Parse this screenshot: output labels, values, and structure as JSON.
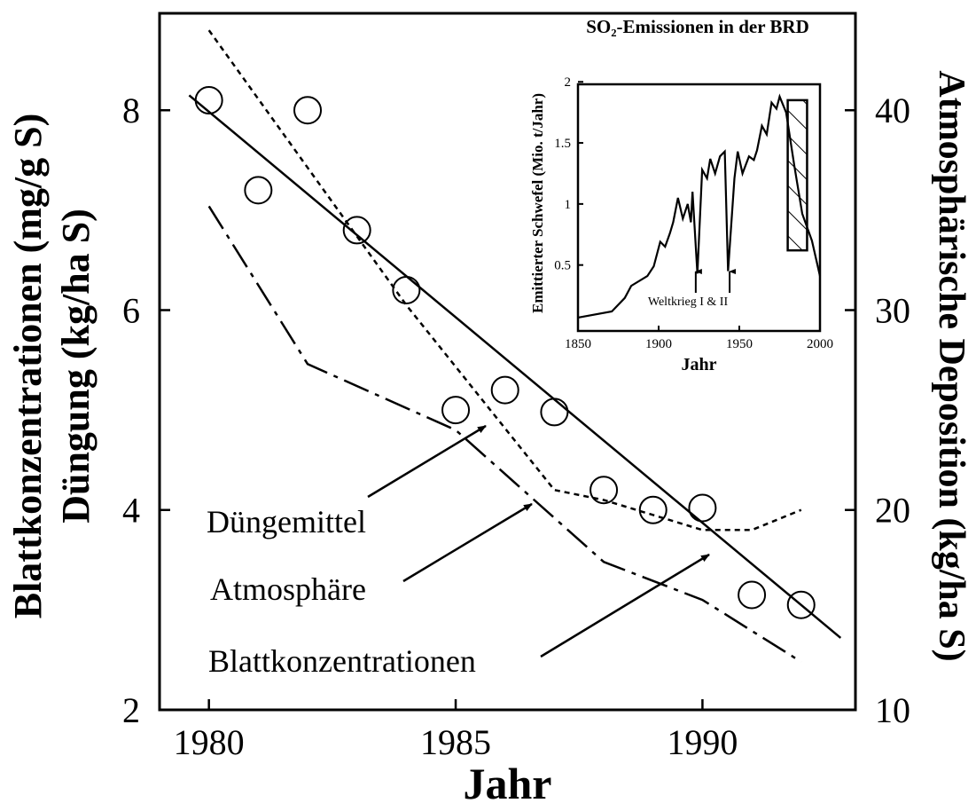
{
  "chart_data": [
    {
      "type": "line",
      "xlabel": "Jahr",
      "ylabel": [
        "Blattkonzentrationen (mg/g S)",
        "Düngung (kg/ha S)"
      ],
      "y2label": "Atmosphärische Deposition (kg/ha S)",
      "xlim": [
        1979,
        1993.1
      ],
      "xticks": [
        1980,
        1985,
        1990
      ],
      "ylim": [
        2,
        8.97
      ],
      "yticks": [
        2,
        4,
        6,
        8
      ],
      "y2lim": [
        10,
        44.85
      ],
      "y2ticks": [
        10,
        20,
        30,
        40
      ],
      "series": [
        {
          "style": "markers",
          "color": "#000000",
          "axis": "y",
          "x": [
            1980,
            1981,
            1982,
            1983,
            1984,
            1985,
            1986,
            1987,
            1988,
            1989,
            1990,
            1991,
            1992
          ],
          "values": [
            8.1,
            7.2,
            8.0,
            6.8,
            6.2,
            5.0,
            5.2,
            4.98,
            4.2,
            4.0,
            4.02,
            3.15,
            3.05
          ]
        },
        {
          "style": "solid",
          "color": "#000000",
          "axis": "y",
          "x": [
            1979.6,
            1992.8
          ],
          "values": [
            8.15,
            2.72
          ]
        },
        {
          "style": "dotted",
          "color": "#000000",
          "axis": "y",
          "x": [
            1980,
            1984,
            1987,
            1988,
            1990,
            1991,
            1992
          ],
          "values": [
            8.8,
            6.05,
            4.2,
            4.1,
            3.8,
            3.8,
            4.0
          ]
        },
        {
          "style": "dashdot",
          "color": "#000000",
          "axis": "y2",
          "x": [
            1980,
            1982,
            1985,
            1988,
            1990,
            1992
          ],
          "values": [
            35.2,
            27.3,
            24.0,
            17.4,
            15.5,
            12.4
          ]
        }
      ],
      "annotations": [
        {
          "text": "Düngemittel"
        },
        {
          "text": "Atmosphäre"
        },
        {
          "text": "Blattkonzentrationen"
        }
      ]
    },
    {
      "type": "line",
      "title": "SO₂-Emissionen in der BRD",
      "xlabel": "Jahr",
      "ylabel": "Emittierter Schwefel (Mio. t/Jahr)",
      "xlim": [
        1850,
        2000
      ],
      "xticks": [
        1850,
        1900,
        1950,
        2000
      ],
      "ylim": [
        -0.04,
        1.98
      ],
      "yticks": [
        0.5,
        1,
        1.5,
        2
      ],
      "series": [
        {
          "style": "solid",
          "color": "#000000",
          "x": [
            1850,
            1871,
            1879,
            1883,
            1893,
            1897,
            1901,
            1904,
            1907,
            1909,
            1912,
            1915,
            1918,
            1920,
            1921,
            1924,
            1927,
            1930,
            1932,
            1935,
            1938,
            1941,
            1943,
            1947,
            1949,
            1952,
            1956,
            1959,
            1961,
            1964,
            1967,
            1970,
            1973,
            1975,
            1979,
            1984,
            1989,
            1995,
            2000
          ],
          "values": [
            0.07,
            0.12,
            0.23,
            0.33,
            0.41,
            0.49,
            0.69,
            0.65,
            0.76,
            0.85,
            1.05,
            0.88,
            1.0,
            0.85,
            1.1,
            0.43,
            1.28,
            1.21,
            1.37,
            1.25,
            1.39,
            1.43,
            0.45,
            1.21,
            1.43,
            1.25,
            1.39,
            1.36,
            1.44,
            1.64,
            1.57,
            1.83,
            1.78,
            1.88,
            1.75,
            1.32,
            0.92,
            0.7,
            0.41
          ]
        }
      ],
      "annotations": [
        {
          "text": "Weltkrieg I & II",
          "x": [
            1923,
            1944
          ]
        }
      ],
      "hatched_band": {
        "x": [
          1980,
          1992
        ],
        "y": [
          0.62,
          1.85
        ]
      }
    }
  ]
}
